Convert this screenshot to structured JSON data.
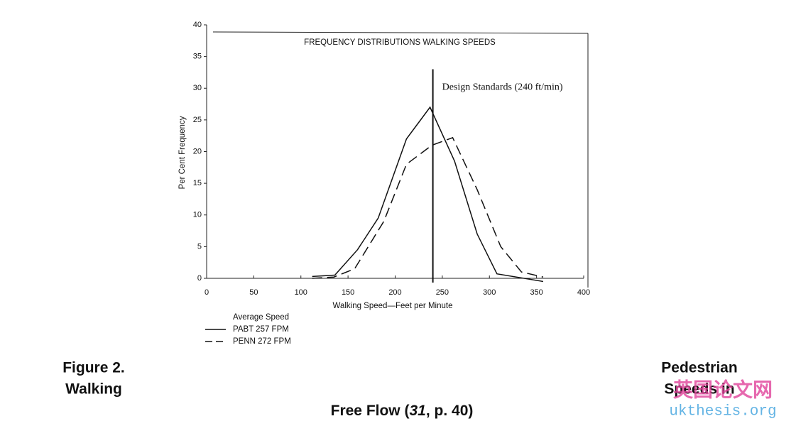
{
  "chart_data": {
    "type": "line",
    "title": "FREQUENCY DISTRIBUTIONS WALKING SPEEDS",
    "x_label": "Walking Speed—Feet per Minute",
    "y_label": "Per Cent Frequency",
    "xlim": [
      0,
      400
    ],
    "xticks": [
      0,
      50,
      100,
      150,
      200,
      250,
      300,
      350,
      400
    ],
    "ylim": [
      0,
      40
    ],
    "yticks": [
      0,
      5,
      10,
      15,
      20,
      25,
      30,
      35,
      40
    ],
    "legend_title": "Average Speed",
    "series": [
      {
        "name": "PABT 257 FPM",
        "color": "#111111",
        "dashed": false,
        "x": [
          112,
          136,
          160,
          182,
          212,
          237,
          263,
          287,
          308,
          357
        ],
        "values": [
          0.3,
          0.5,
          4.5,
          9.5,
          22,
          27,
          18.5,
          7,
          0.7,
          -0.5
        ]
      },
      {
        "name": "PENN 272 FPM",
        "color": "#111111",
        "dashed": true,
        "x": [
          112,
          135,
          157,
          188,
          212,
          239,
          261,
          287,
          312,
          334,
          357
        ],
        "values": [
          0,
          0.2,
          1.5,
          9,
          18,
          21,
          22.2,
          14,
          5,
          1,
          0.2
        ]
      }
    ],
    "annotation": {
      "text": "Design Standards (240 ft/min)",
      "x": 240,
      "y_top": 33
    }
  },
  "caption": {
    "left": [
      "Figure 2.",
      "Walking"
    ],
    "right": [
      "Pedestrian",
      "Speeds in"
    ],
    "bottom": [
      "Free Flow (",
      "31",
      ", p. 40)"
    ]
  },
  "watermark": {
    "chinese": "英国论文网",
    "site": "ukthesis.org"
  }
}
